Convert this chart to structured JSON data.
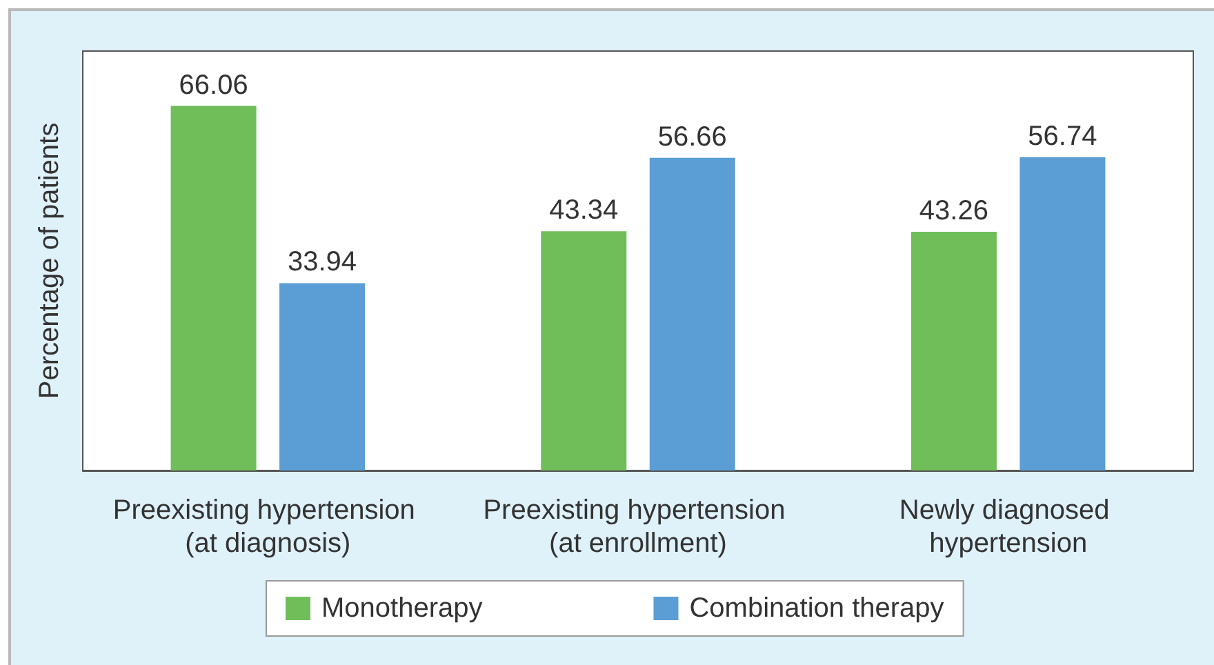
{
  "chart_data": {
    "type": "bar",
    "ylabel": "Percentage of patients",
    "categories": [
      "Preexisting hypertension (at diagnosis)",
      "Preexisting hypertension (at enrollment)",
      "Newly diagnosed hypertension"
    ],
    "series": [
      {
        "name": "Monotherapy",
        "color": "#6fbe5a",
        "values": [
          66.06,
          43.34,
          43.26
        ]
      },
      {
        "name": "Combination therapy",
        "color": "#5a9ed5",
        "values": [
          33.94,
          56.66,
          56.74
        ]
      }
    ],
    "ylim": [
      0,
      76
    ],
    "data_labels": true,
    "legend": "bottom",
    "tick_labels": "x"
  }
}
